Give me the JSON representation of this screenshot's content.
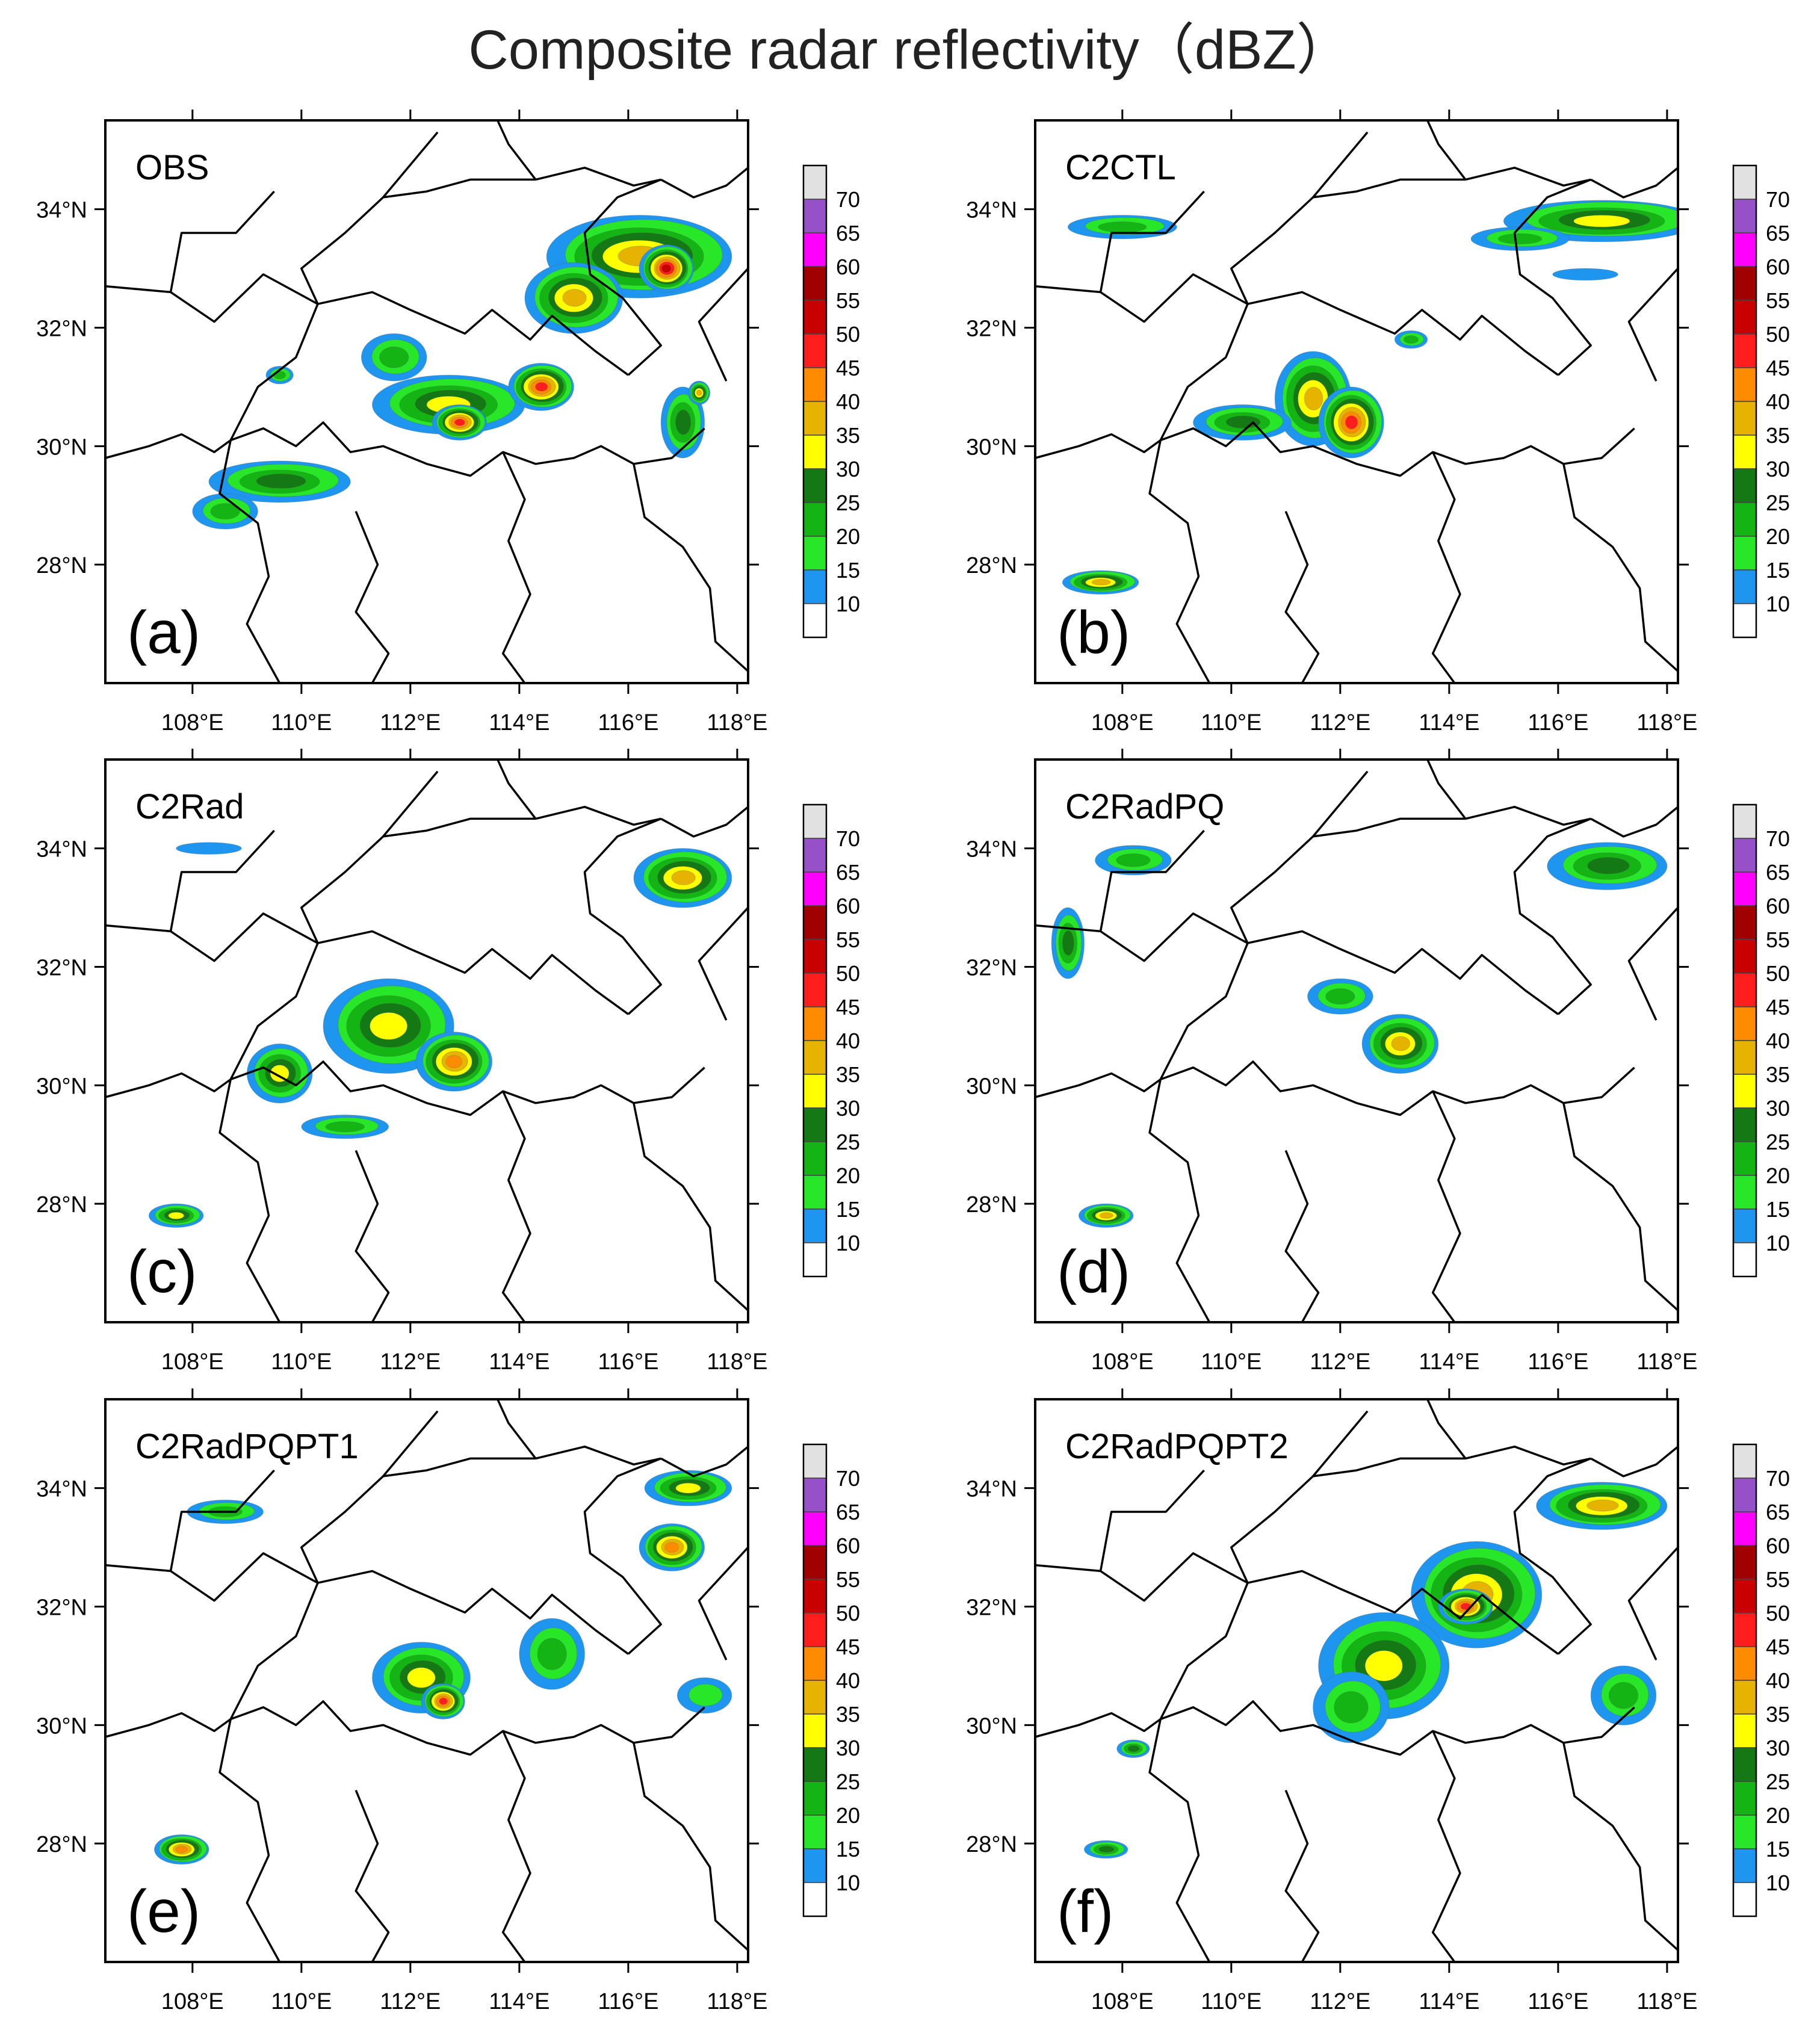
{
  "figure": {
    "title": "Composite radar reflectivity（dBZ）"
  },
  "colors": {
    "levels": [
      {
        "min": 5,
        "max": 10,
        "color": "#ffffff"
      },
      {
        "min": 10,
        "max": 15,
        "color": "#1e96f0"
      },
      {
        "min": 15,
        "max": 20,
        "color": "#28e628"
      },
      {
        "min": 20,
        "max": 25,
        "color": "#14b414"
      },
      {
        "min": 25,
        "max": 30,
        "color": "#147814"
      },
      {
        "min": 30,
        "max": 35,
        "color": "#ffff00"
      },
      {
        "min": 35,
        "max": 40,
        "color": "#e6b400"
      },
      {
        "min": 40,
        "max": 45,
        "color": "#ff8c00"
      },
      {
        "min": 45,
        "max": 50,
        "color": "#ff1e1e"
      },
      {
        "min": 50,
        "max": 55,
        "color": "#c80000"
      },
      {
        "min": 55,
        "max": 60,
        "color": "#a00000"
      },
      {
        "min": 60,
        "max": 65,
        "color": "#ff00ff"
      },
      {
        "min": 65,
        "max": 70,
        "color": "#9650c8"
      },
      {
        "min": 70,
        "max": 75,
        "color": "#e1e1e1"
      }
    ]
  },
  "colorbar": {
    "labels": [
      "10",
      "15",
      "20",
      "25",
      "30",
      "35",
      "40",
      "45",
      "50",
      "55",
      "60",
      "65",
      "70"
    ]
  },
  "axes": {
    "lon_range": [
      106.4,
      118.2
    ],
    "lat_range": [
      26.0,
      35.5
    ],
    "x_ticks": [
      "108°E",
      "110°E",
      "112°E",
      "114°E",
      "116°E",
      "118°E"
    ],
    "x_tick_values": [
      108,
      110,
      112,
      114,
      116,
      118
    ],
    "y_ticks": [
      "34°N",
      "32°N",
      "30°N",
      "28°N"
    ],
    "y_tick_values": [
      34,
      32,
      30,
      28
    ]
  },
  "chart_data": [
    {
      "type": "heatmap",
      "panel_tag": "(a)",
      "name": "OBS",
      "cells": [
        {
          "lon": 116.2,
          "lat": 33.2,
          "rx": 1.7,
          "ry": 0.7,
          "value": 35
        },
        {
          "lon": 116.7,
          "lat": 33.0,
          "rx": 0.5,
          "ry": 0.4,
          "value": 52
        },
        {
          "lon": 115.0,
          "lat": 32.5,
          "rx": 0.9,
          "ry": 0.6,
          "value": 35
        },
        {
          "lon": 112.7,
          "lat": 30.7,
          "rx": 1.4,
          "ry": 0.5,
          "value": 30
        },
        {
          "lon": 112.9,
          "lat": 30.4,
          "rx": 0.5,
          "ry": 0.3,
          "value": 48
        },
        {
          "lon": 114.4,
          "lat": 31.0,
          "rx": 0.6,
          "ry": 0.4,
          "value": 45
        },
        {
          "lon": 111.7,
          "lat": 31.5,
          "rx": 0.6,
          "ry": 0.4,
          "value": 22
        },
        {
          "lon": 109.6,
          "lat": 29.4,
          "rx": 1.3,
          "ry": 0.35,
          "value": 27
        },
        {
          "lon": 108.6,
          "lat": 28.9,
          "rx": 0.6,
          "ry": 0.3,
          "value": 22
        },
        {
          "lon": 117.0,
          "lat": 30.4,
          "rx": 0.4,
          "ry": 0.6,
          "value": 27
        },
        {
          "lon": 109.6,
          "lat": 31.2,
          "rx": 0.25,
          "ry": 0.15,
          "value": 22
        },
        {
          "lon": 117.3,
          "lat": 30.9,
          "rx": 0.2,
          "ry": 0.2,
          "value": 35
        }
      ]
    },
    {
      "type": "heatmap",
      "panel_tag": "(b)",
      "name": "C2CTL",
      "cells": [
        {
          "lon": 116.8,
          "lat": 33.8,
          "rx": 1.8,
          "ry": 0.35,
          "value": 32
        },
        {
          "lon": 115.3,
          "lat": 33.5,
          "rx": 0.9,
          "ry": 0.2,
          "value": 22
        },
        {
          "lon": 111.5,
          "lat": 30.8,
          "rx": 0.7,
          "ry": 0.8,
          "value": 35
        },
        {
          "lon": 112.2,
          "lat": 30.4,
          "rx": 0.6,
          "ry": 0.6,
          "value": 46
        },
        {
          "lon": 110.2,
          "lat": 30.4,
          "rx": 0.9,
          "ry": 0.3,
          "value": 28
        },
        {
          "lon": 107.6,
          "lat": 27.7,
          "rx": 0.7,
          "ry": 0.2,
          "value": 37
        },
        {
          "lon": 108.0,
          "lat": 33.7,
          "rx": 1.0,
          "ry": 0.2,
          "value": 22
        },
        {
          "lon": 113.3,
          "lat": 31.8,
          "rx": 0.3,
          "ry": 0.15,
          "value": 22
        },
        {
          "lon": 116.5,
          "lat": 32.9,
          "rx": 0.6,
          "ry": 0.1,
          "value": 12
        }
      ]
    },
    {
      "type": "heatmap",
      "panel_tag": "(c)",
      "name": "C2Rad",
      "cells": [
        {
          "lon": 111.6,
          "lat": 31.0,
          "rx": 1.2,
          "ry": 0.8,
          "value": 32
        },
        {
          "lon": 112.8,
          "lat": 30.4,
          "rx": 0.7,
          "ry": 0.5,
          "value": 40
        },
        {
          "lon": 109.6,
          "lat": 30.2,
          "rx": 0.6,
          "ry": 0.5,
          "value": 30
        },
        {
          "lon": 117.0,
          "lat": 33.5,
          "rx": 0.9,
          "ry": 0.5,
          "value": 35
        },
        {
          "lon": 107.7,
          "lat": 27.8,
          "rx": 0.5,
          "ry": 0.2,
          "value": 30
        },
        {
          "lon": 108.3,
          "lat": 34.0,
          "rx": 0.6,
          "ry": 0.1,
          "value": 12
        },
        {
          "lon": 110.8,
          "lat": 29.3,
          "rx": 0.8,
          "ry": 0.2,
          "value": 22
        }
      ]
    },
    {
      "type": "heatmap",
      "panel_tag": "(d)",
      "name": "C2RadPQ",
      "cells": [
        {
          "lon": 113.1,
          "lat": 30.7,
          "rx": 0.7,
          "ry": 0.5,
          "value": 35
        },
        {
          "lon": 112.0,
          "lat": 31.5,
          "rx": 0.6,
          "ry": 0.3,
          "value": 22
        },
        {
          "lon": 116.9,
          "lat": 33.7,
          "rx": 1.1,
          "ry": 0.4,
          "value": 28
        },
        {
          "lon": 108.2,
          "lat": 33.8,
          "rx": 0.7,
          "ry": 0.25,
          "value": 22
        },
        {
          "lon": 107.7,
          "lat": 27.8,
          "rx": 0.5,
          "ry": 0.2,
          "value": 37
        },
        {
          "lon": 107.0,
          "lat": 32.4,
          "rx": 0.3,
          "ry": 0.6,
          "value": 27
        }
      ]
    },
    {
      "type": "heatmap",
      "panel_tag": "(e)",
      "name": "C2RadPQPT1",
      "cells": [
        {
          "lon": 112.2,
          "lat": 30.8,
          "rx": 0.9,
          "ry": 0.6,
          "value": 32
        },
        {
          "lon": 112.6,
          "lat": 30.4,
          "rx": 0.4,
          "ry": 0.3,
          "value": 48
        },
        {
          "lon": 114.6,
          "lat": 31.2,
          "rx": 0.6,
          "ry": 0.6,
          "value": 22
        },
        {
          "lon": 116.8,
          "lat": 33.0,
          "rx": 0.6,
          "ry": 0.4,
          "value": 40
        },
        {
          "lon": 117.1,
          "lat": 34.0,
          "rx": 0.8,
          "ry": 0.3,
          "value": 32
        },
        {
          "lon": 108.6,
          "lat": 33.6,
          "rx": 0.7,
          "ry": 0.2,
          "value": 22
        },
        {
          "lon": 107.8,
          "lat": 27.9,
          "rx": 0.5,
          "ry": 0.25,
          "value": 40
        },
        {
          "lon": 117.4,
          "lat": 30.5,
          "rx": 0.5,
          "ry": 0.3,
          "value": 17
        }
      ]
    },
    {
      "type": "heatmap",
      "panel_tag": "(f)",
      "name": "C2RadPQPT2",
      "cells": [
        {
          "lon": 114.5,
          "lat": 32.2,
          "rx": 1.2,
          "ry": 0.9,
          "value": 35
        },
        {
          "lon": 112.8,
          "lat": 31.0,
          "rx": 1.2,
          "ry": 0.9,
          "value": 32
        },
        {
          "lon": 114.3,
          "lat": 32.0,
          "rx": 0.5,
          "ry": 0.3,
          "value": 48
        },
        {
          "lon": 116.8,
          "lat": 33.7,
          "rx": 1.2,
          "ry": 0.4,
          "value": 37
        },
        {
          "lon": 117.2,
          "lat": 30.5,
          "rx": 0.6,
          "ry": 0.5,
          "value": 22
        },
        {
          "lon": 112.2,
          "lat": 30.3,
          "rx": 0.7,
          "ry": 0.6,
          "value": 22
        },
        {
          "lon": 108.2,
          "lat": 29.6,
          "rx": 0.3,
          "ry": 0.15,
          "value": 27
        },
        {
          "lon": 107.7,
          "lat": 27.9,
          "rx": 0.4,
          "ry": 0.15,
          "value": 27
        }
      ]
    }
  ],
  "boundaries": [
    [
      [
        106.4,
        29.8
      ],
      [
        107.2,
        30.0
      ],
      [
        107.8,
        30.2
      ],
      [
        108.4,
        29.9
      ],
      [
        108.7,
        30.1
      ]
    ],
    [
      [
        108.7,
        30.1
      ],
      [
        109.3,
        30.3
      ],
      [
        109.9,
        30.0
      ],
      [
        110.4,
        30.4
      ],
      [
        110.9,
        29.9
      ],
      [
        111.5,
        30.0
      ],
      [
        112.3,
        29.7
      ],
      [
        113.1,
        29.5
      ],
      [
        113.7,
        29.9
      ],
      [
        114.3,
        29.7
      ],
      [
        115.0,
        29.8
      ],
      [
        115.5,
        30.0
      ],
      [
        116.1,
        29.7
      ],
      [
        116.8,
        29.8
      ],
      [
        117.4,
        30.3
      ]
    ],
    [
      [
        108.7,
        30.1
      ],
      [
        108.5,
        29.2
      ],
      [
        109.2,
        28.7
      ],
      [
        109.4,
        27.8
      ],
      [
        109.0,
        27.0
      ],
      [
        109.6,
        26.0
      ]
    ],
    [
      [
        108.7,
        30.1
      ],
      [
        109.2,
        31.0
      ],
      [
        109.9,
        31.5
      ],
      [
        110.3,
        32.4
      ]
    ],
    [
      [
        110.3,
        32.4
      ],
      [
        111.3,
        32.6
      ],
      [
        112.0,
        32.3
      ],
      [
        113.0,
        31.9
      ],
      [
        113.5,
        32.3
      ],
      [
        114.2,
        31.8
      ],
      [
        114.6,
        32.2
      ],
      [
        115.4,
        31.6
      ],
      [
        116.0,
        31.2
      ]
    ],
    [
      [
        110.3,
        32.4
      ],
      [
        110.0,
        33.0
      ],
      [
        110.8,
        33.6
      ],
      [
        111.5,
        34.2
      ],
      [
        112.5,
        35.3
      ]
    ],
    [
      [
        106.4,
        32.7
      ],
      [
        107.6,
        32.6
      ],
      [
        108.4,
        32.1
      ],
      [
        109.3,
        32.9
      ],
      [
        110.3,
        32.4
      ]
    ],
    [
      [
        107.6,
        32.6
      ],
      [
        107.8,
        33.6
      ],
      [
        108.8,
        33.6
      ],
      [
        109.5,
        34.3
      ]
    ],
    [
      [
        113.7,
        29.9
      ],
      [
        114.1,
        29.1
      ],
      [
        113.8,
        28.4
      ],
      [
        114.2,
        27.5
      ],
      [
        113.7,
        26.5
      ],
      [
        114.1,
        26.0
      ]
    ],
    [
      [
        116.1,
        29.7
      ],
      [
        116.3,
        28.8
      ],
      [
        117.0,
        28.3
      ],
      [
        117.5,
        27.6
      ],
      [
        117.6,
        26.7
      ],
      [
        118.2,
        26.2
      ]
    ],
    [
      [
        116.0,
        31.2
      ],
      [
        116.6,
        31.7
      ],
      [
        115.9,
        32.5
      ],
      [
        115.3,
        32.9
      ],
      [
        115.2,
        33.6
      ],
      [
        115.8,
        34.2
      ],
      [
        116.6,
        34.5
      ]
    ],
    [
      [
        116.6,
        34.5
      ],
      [
        117.2,
        34.2
      ],
      [
        117.8,
        34.4
      ],
      [
        118.2,
        34.7
      ]
    ],
    [
      [
        114.3,
        34.5
      ],
      [
        115.2,
        34.7
      ],
      [
        116.1,
        34.4
      ],
      [
        116.6,
        34.5
      ]
    ],
    [
      [
        114.3,
        34.5
      ],
      [
        113.8,
        35.1
      ],
      [
        113.6,
        35.5
      ]
    ],
    [
      [
        111.5,
        34.2
      ],
      [
        112.3,
        34.3
      ],
      [
        113.1,
        34.5
      ],
      [
        114.3,
        34.5
      ]
    ],
    [
      [
        117.8,
        31.1
      ],
      [
        117.3,
        32.1
      ],
      [
        117.8,
        32.6
      ],
      [
        118.2,
        33.0
      ]
    ],
    [
      [
        111.0,
        28.9
      ],
      [
        111.4,
        28.0
      ],
      [
        111.0,
        27.2
      ],
      [
        111.6,
        26.5
      ],
      [
        111.3,
        26.0
      ]
    ]
  ]
}
